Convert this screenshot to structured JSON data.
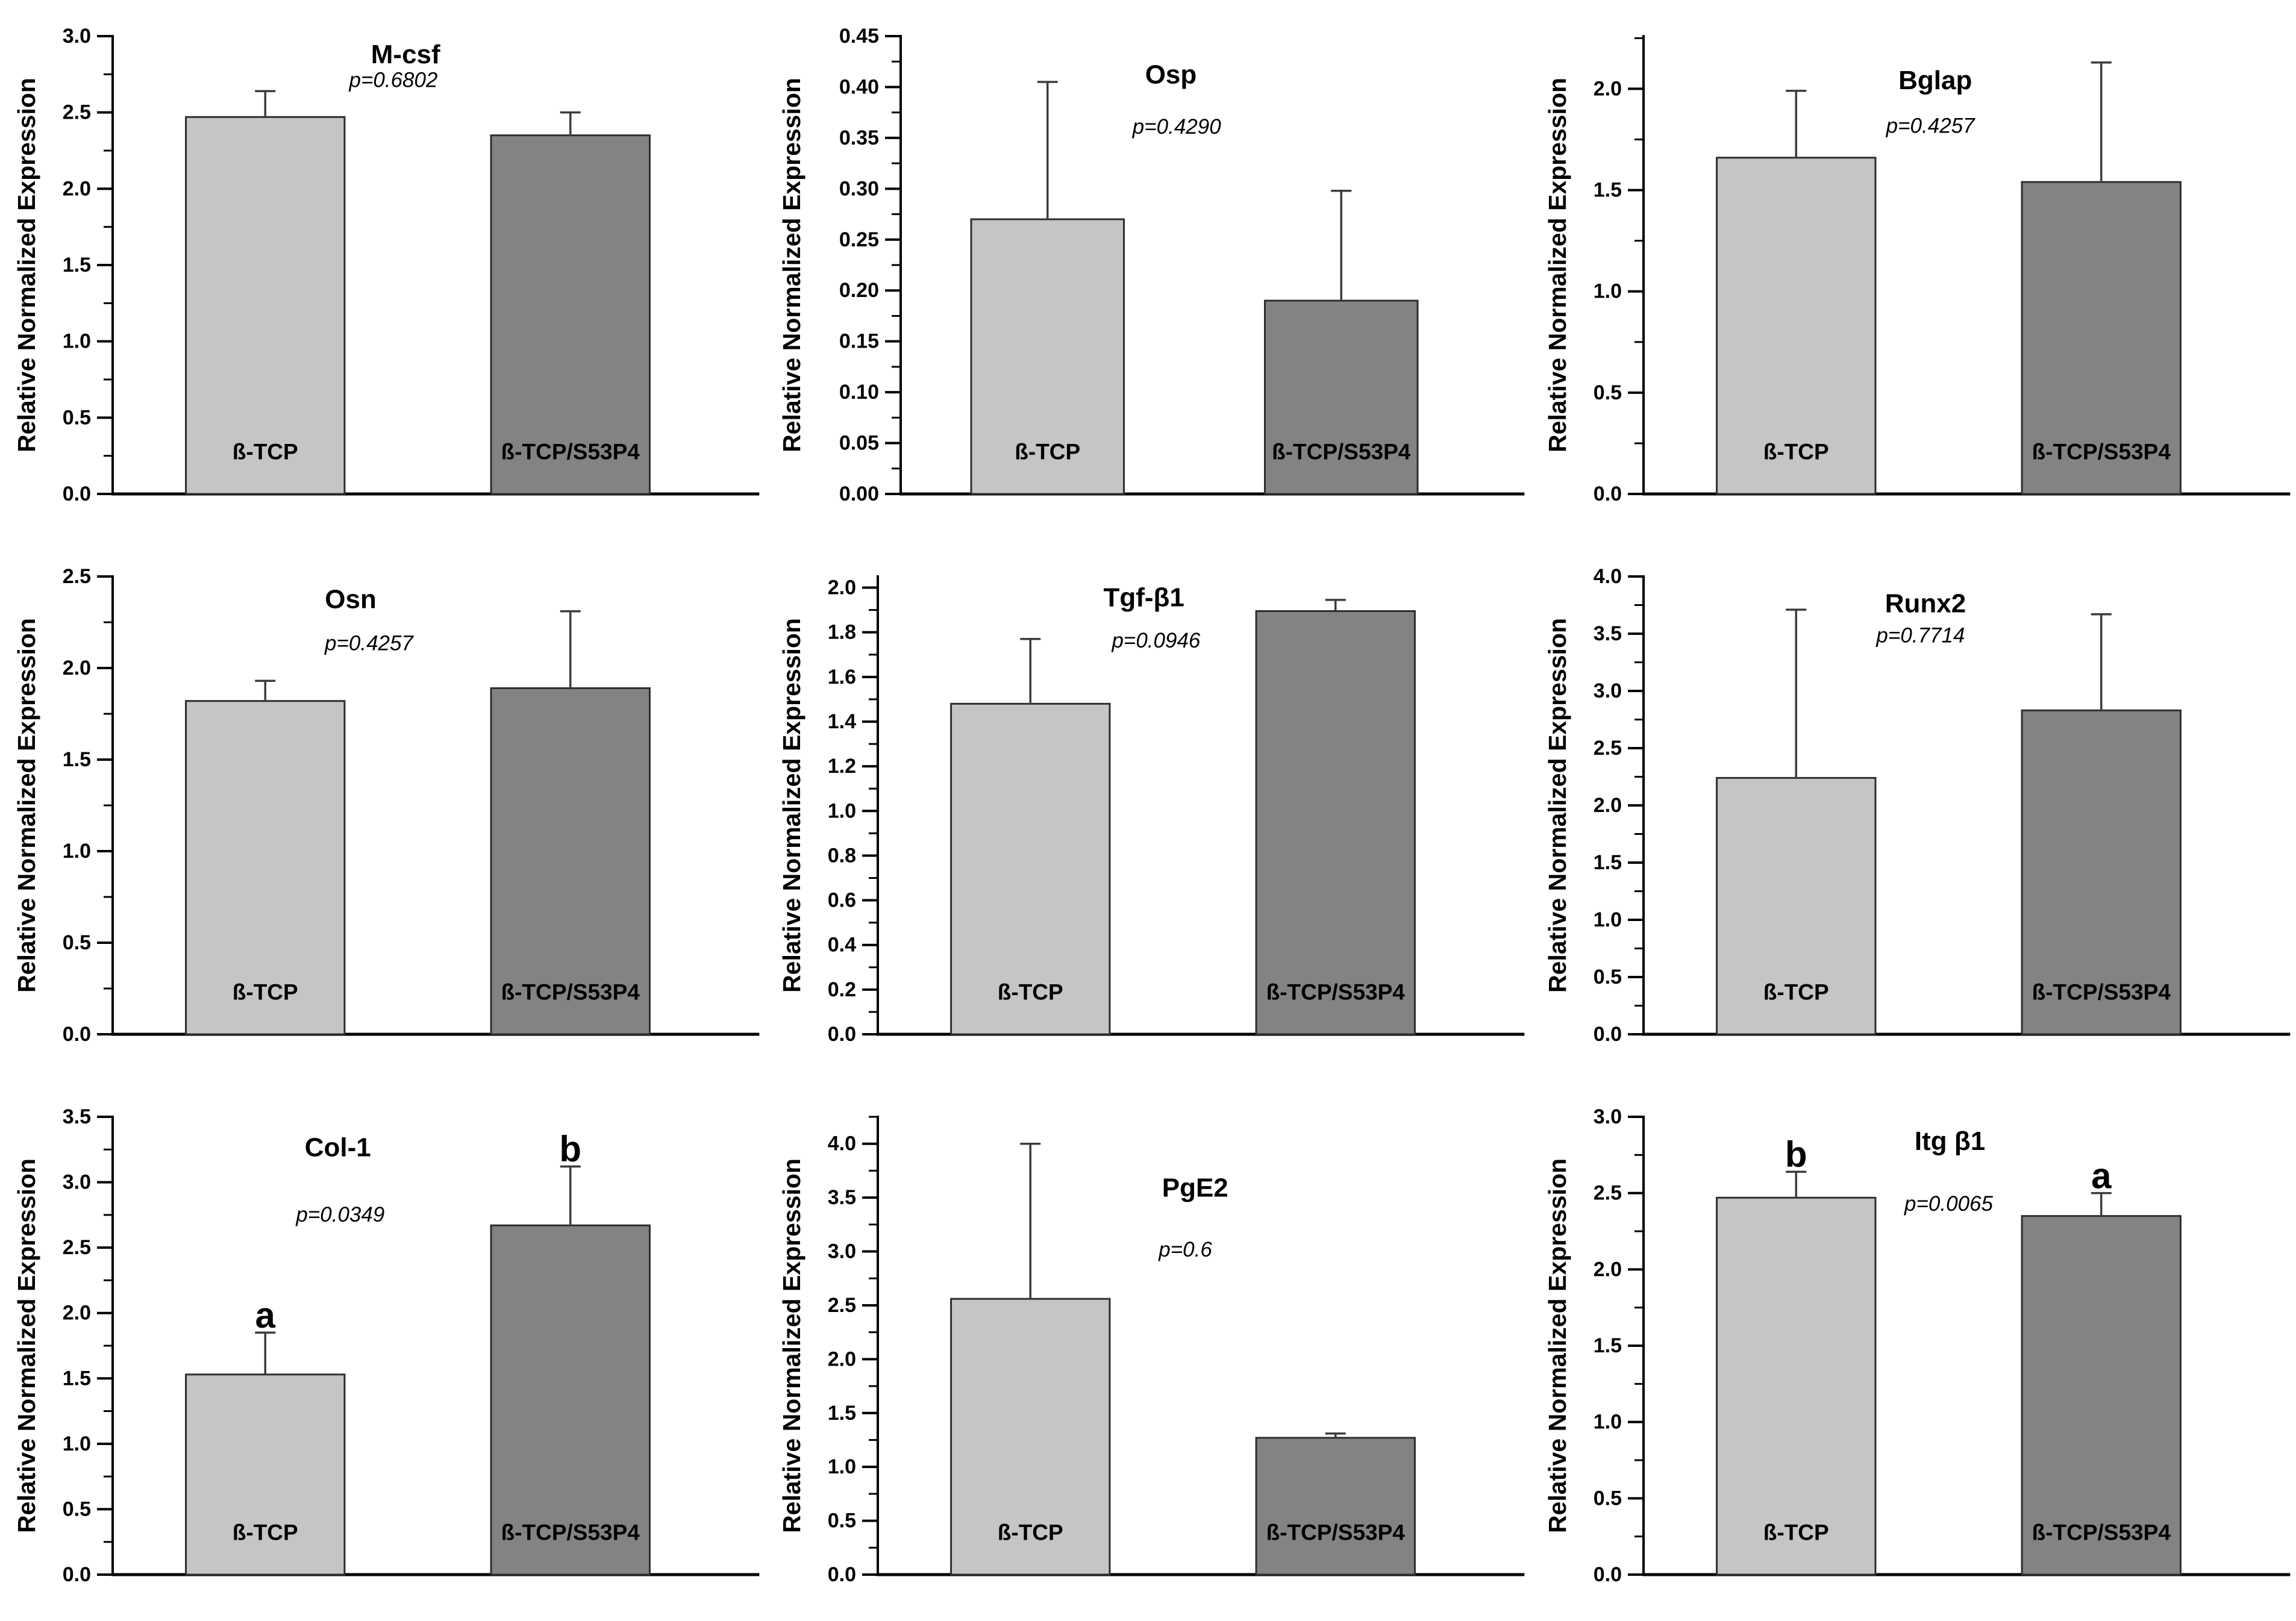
{
  "figure": {
    "ylabel": "Relative Normalized Expression",
    "categories": [
      "ß-TCP",
      "ß-TCP/S53P4"
    ],
    "colors": {
      "background": "#ffffff",
      "bar_fills": [
        "#c5c5c5",
        "#838383"
      ],
      "bar_border": "#2e2e2e",
      "error_bar": "#3c3c3c",
      "axis": "#000000",
      "text": "#000000"
    }
  },
  "chart_data": [
    {
      "type": "bar",
      "title": "M-csf",
      "p_label": "p=0.6802",
      "ylabel": "Relative Normalized Expression",
      "categories": [
        "ß-TCP",
        "ß-TCP/S53P4"
      ],
      "values": [
        2.47,
        2.35
      ],
      "errors": [
        0.17,
        0.15
      ],
      "letters": [
        "",
        ""
      ],
      "ylim": [
        0,
        3.0
      ],
      "ytick_top": 3.0,
      "ytick_step": 0.5,
      "decimals": 1,
      "grid": false,
      "legend": "none",
      "layout": {
        "axis_x": 187,
        "title_x": 0.48,
        "title_y": 0.04,
        "p_x": 0.46,
        "p_y": 0.096
      }
    },
    {
      "type": "bar",
      "title": "Osp",
      "p_label": "p=0.4290",
      "ylabel": "Relative Normalized Expression",
      "categories": [
        "ß-TCP",
        "ß-TCP/S53P4"
      ],
      "values": [
        0.27,
        0.19
      ],
      "errors": [
        0.135,
        0.108
      ],
      "letters": [
        "",
        ""
      ],
      "ylim": [
        0,
        0.45
      ],
      "ytick_top": 0.45,
      "ytick_step": 0.05,
      "decimals": 2,
      "grid": false,
      "legend": "none",
      "layout": {
        "axis_x": 225,
        "title_x": 0.46,
        "title_y": 0.084,
        "p_x": 0.47,
        "p_y": 0.198
      }
    },
    {
      "type": "bar",
      "title": "Bglap",
      "p_label": "p=0.4257",
      "ylabel": "Relative Normalized Expression",
      "categories": [
        "ß-TCP",
        "ß-TCP/S53P4"
      ],
      "values": [
        1.66,
        1.54
      ],
      "errors": [
        0.33,
        0.59
      ],
      "letters": [
        "",
        ""
      ],
      "ylim": [
        0,
        2.26
      ],
      "ytick_top": 2.0,
      "ytick_step": 0.5,
      "decimals": 1,
      "grid": false,
      "legend": "none",
      "layout": {
        "axis_x": 187,
        "title_x": 0.478,
        "title_y": 0.097,
        "p_x": 0.47,
        "p_y": 0.196
      }
    },
    {
      "type": "bar",
      "title": "Osn",
      "p_label": "p=0.4257",
      "ylabel": "Relative Normalized Expression",
      "categories": [
        "ß-TCP",
        "ß-TCP/S53P4"
      ],
      "values": [
        1.82,
        1.89
      ],
      "errors": [
        0.11,
        0.42
      ],
      "letters": [
        "",
        ""
      ],
      "ylim": [
        0,
        2.5
      ],
      "ytick_top": 2.5,
      "ytick_step": 0.5,
      "decimals": 1,
      "grid": false,
      "legend": "none",
      "layout": {
        "axis_x": 187,
        "title_x": 0.39,
        "title_y": 0.05,
        "p_x": 0.42,
        "p_y": 0.146
      }
    },
    {
      "type": "bar",
      "title": "Tgf-β1",
      "p_label": "p=0.0946",
      "ylabel": "Relative Normalized Expression",
      "categories": [
        "ß-TCP",
        "ß-TCP/S53P4"
      ],
      "values": [
        1.48,
        1.895
      ],
      "errors": [
        0.29,
        0.05
      ],
      "letters": [
        "",
        ""
      ],
      "ylim": [
        0,
        2.05
      ],
      "ytick_top": 2.0,
      "ytick_step": 0.2,
      "decimals": 1,
      "grid": false,
      "legend": "none",
      "layout": {
        "axis_x": 187,
        "title_x": 0.436,
        "title_y": 0.046,
        "p_x": 0.456,
        "p_y": 0.14
      }
    },
    {
      "type": "bar",
      "title": "Runx2",
      "p_label": "p=0.7714",
      "ylabel": "Relative Normalized Expression",
      "categories": [
        "ß-TCP",
        "ß-TCP/S53P4"
      ],
      "values": [
        2.24,
        2.83
      ],
      "errors": [
        1.47,
        0.84
      ],
      "letters": [
        "",
        ""
      ],
      "ylim": [
        0,
        4.0
      ],
      "ytick_top": 4.0,
      "ytick_step": 0.5,
      "decimals": 1,
      "grid": false,
      "legend": "none",
      "layout": {
        "axis_x": 187,
        "title_x": 0.462,
        "title_y": 0.059,
        "p_x": 0.454,
        "p_y": 0.129
      }
    },
    {
      "type": "bar",
      "title": "Col-1",
      "p_label": "p=0.0349",
      "ylabel": "Relative Normalized Expression",
      "categories": [
        "ß-TCP",
        "ß-TCP/S53P4"
      ],
      "values": [
        1.53,
        2.67
      ],
      "errors": [
        0.32,
        0.45
      ],
      "letters": [
        "a",
        "b"
      ],
      "ylim": [
        0,
        3.5
      ],
      "ytick_top": 3.5,
      "ytick_step": 0.5,
      "decimals": 1,
      "grid": false,
      "legend": "none",
      "layout": {
        "axis_x": 187,
        "title_x": 0.369,
        "title_y": 0.067,
        "p_x": 0.373,
        "p_y": 0.214
      }
    },
    {
      "type": "bar",
      "title": "PgE2",
      "p_label": "p=0.6",
      "ylabel": "Relative Normalized Expression",
      "categories": [
        "ß-TCP",
        "ß-TCP/S53P4"
      ],
      "values": [
        2.56,
        1.27
      ],
      "errors": [
        1.44,
        0.04
      ],
      "letters": [
        "",
        ""
      ],
      "ylim": [
        0,
        4.25
      ],
      "ytick_top": 4.0,
      "ytick_step": 0.5,
      "decimals": 1,
      "grid": false,
      "legend": "none",
      "layout": {
        "axis_x": 187,
        "title_x": 0.52,
        "title_y": 0.155,
        "p_x": 0.504,
        "p_y": 0.29
      }
    },
    {
      "type": "bar",
      "title": "Itg β1",
      "p_label": "p=0.0065",
      "ylabel": "Relative Normalized Expression",
      "categories": [
        "ß-TCP",
        "ß-TCP/S53P4"
      ],
      "values": [
        2.47,
        2.35
      ],
      "errors": [
        0.17,
        0.15
      ],
      "letters": [
        "b",
        "a"
      ],
      "ylim": [
        0,
        3.0
      ],
      "ytick_top": 3.0,
      "ytick_step": 0.5,
      "decimals": 1,
      "grid": false,
      "legend": "none",
      "layout": {
        "axis_x": 187,
        "title_x": 0.502,
        "title_y": 0.053,
        "p_x": 0.5,
        "p_y": 0.19
      }
    }
  ]
}
